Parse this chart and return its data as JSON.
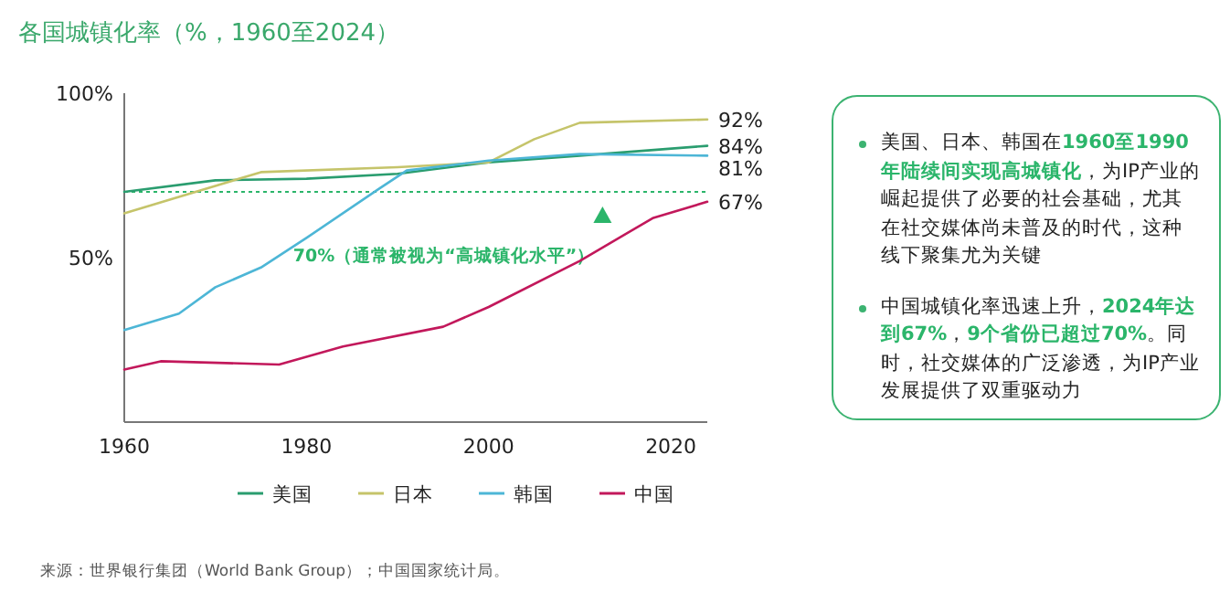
{
  "chart_data": {
    "type": "line",
    "title": "各国城镇化率（%，1960至2024）",
    "xlim": [
      1960,
      2024
    ],
    "xticks": [
      1960,
      1980,
      2000,
      2020
    ],
    "ylim": [
      0,
      100
    ],
    "yticks": [
      {
        "value": 50,
        "label": "50%"
      },
      {
        "value": 100,
        "label": "100%"
      }
    ],
    "legend": "bottom",
    "series": [
      {
        "name": "美国",
        "color": "#2a9d6f",
        "x": [
          1960,
          1970,
          1980,
          1990,
          2000,
          2010,
          2024
        ],
        "values": [
          70,
          73.5,
          74,
          75.5,
          79,
          81,
          84
        ],
        "value_labels": [
          null,
          null,
          null,
          null,
          null,
          null,
          "84%"
        ]
      },
      {
        "name": "日本",
        "color": "#c5c46a",
        "x": [
          1960,
          1975,
          1990,
          2000,
          2005,
          2010,
          2024
        ],
        "values": [
          63.5,
          76,
          77.5,
          79,
          86,
          91,
          92
        ],
        "value_labels": [
          null,
          null,
          null,
          null,
          null,
          null,
          "92%"
        ]
      },
      {
        "name": "韩国",
        "color": "#4db6d6",
        "x": [
          1960,
          1966,
          1970,
          1975,
          1980,
          1988,
          1991,
          2000,
          2010,
          2024
        ],
        "values": [
          28,
          33,
          41,
          47,
          56,
          71,
          76.5,
          79.5,
          81.5,
          81
        ],
        "value_labels": [
          null,
          null,
          null,
          null,
          null,
          null,
          null,
          null,
          null,
          "81%"
        ]
      },
      {
        "name": "中国",
        "color": "#c2185b",
        "x": [
          1960,
          1964,
          1977,
          1984,
          1995,
          2000,
          2010,
          2018,
          2024
        ],
        "values": [
          16,
          18.5,
          17.5,
          23,
          29,
          35,
          49,
          62,
          67
        ],
        "value_labels": [
          null,
          null,
          null,
          null,
          null,
          null,
          null,
          null,
          "67%"
        ]
      }
    ],
    "ref_lines": [
      {
        "axis": "y",
        "value": 70,
        "label": "70%（通常被视为“高城镇化水平”）",
        "color": "#2bb56a",
        "line_style": "dotted"
      }
    ],
    "annotations": [
      "美国、日本、韩国在**1960至1990年陆续间实现高城镇化**，为IP产业的崛起提供了必要的社会基础，尤其在社交媒体尚未普及的时代，这种线下聚集尤为关键",
      "中国城镇化率迅速上升，**2024年达到67%**，**9个省份已超过70%**。同时，社交媒体的广泛渗透，为IP产业发展提供了双重驱动力",
      "来源：世界银行集团（World Bank Group）；中国国家统计局。"
    ]
  }
}
